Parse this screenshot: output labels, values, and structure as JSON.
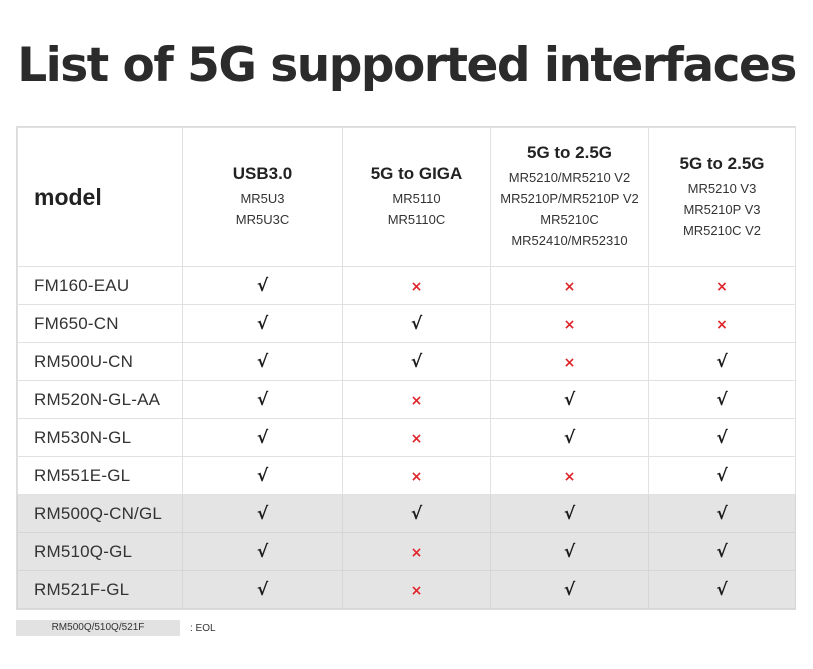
{
  "title": "List of 5G supported interfaces",
  "table": {
    "model_header": "model",
    "columns": [
      {
        "title": "USB3.0",
        "subs": [
          "MR5U3",
          "MR5U3C"
        ]
      },
      {
        "title": "5G to GIGA",
        "subs": [
          "MR5110",
          "MR5110C"
        ]
      },
      {
        "title": "5G to 2.5G",
        "subs": [
          "MR5210/MR5210 V2",
          "MR5210P/MR5210P V2",
          "MR5210C",
          "MR52410/MR52310"
        ]
      },
      {
        "title": "5G to 2.5G",
        "subs": [
          "MR5210 V3",
          "MR5210P V3",
          "MR5210C V2"
        ]
      }
    ],
    "symbols": {
      "yes": "√",
      "no": "×"
    },
    "rows": [
      {
        "model": "FM160-EAU",
        "support": [
          true,
          false,
          false,
          false
        ],
        "eol": false
      },
      {
        "model": "FM650-CN",
        "support": [
          true,
          true,
          false,
          false
        ],
        "eol": false
      },
      {
        "model": "RM500U-CN",
        "support": [
          true,
          true,
          false,
          true
        ],
        "eol": false
      },
      {
        "model": "RM520N-GL-AA",
        "support": [
          true,
          false,
          true,
          true
        ],
        "eol": false
      },
      {
        "model": "RM530N-GL",
        "support": [
          true,
          false,
          true,
          true
        ],
        "eol": false
      },
      {
        "model": "RM551E-GL",
        "support": [
          true,
          false,
          false,
          true
        ],
        "eol": false
      },
      {
        "model": "RM500Q-CN/GL",
        "support": [
          true,
          true,
          true,
          true
        ],
        "eol": true
      },
      {
        "model": "RM510Q-GL",
        "support": [
          true,
          false,
          true,
          true
        ],
        "eol": true
      },
      {
        "model": "RM521F-GL",
        "support": [
          true,
          false,
          true,
          true
        ],
        "eol": true
      }
    ]
  },
  "legend": {
    "swatch_label": "RM500Q/510Q/521F",
    "text": ": EOL"
  },
  "colors": {
    "yes": "#1c1c1c",
    "no": "#e0262b",
    "eol_row": "#e4e4e4"
  }
}
